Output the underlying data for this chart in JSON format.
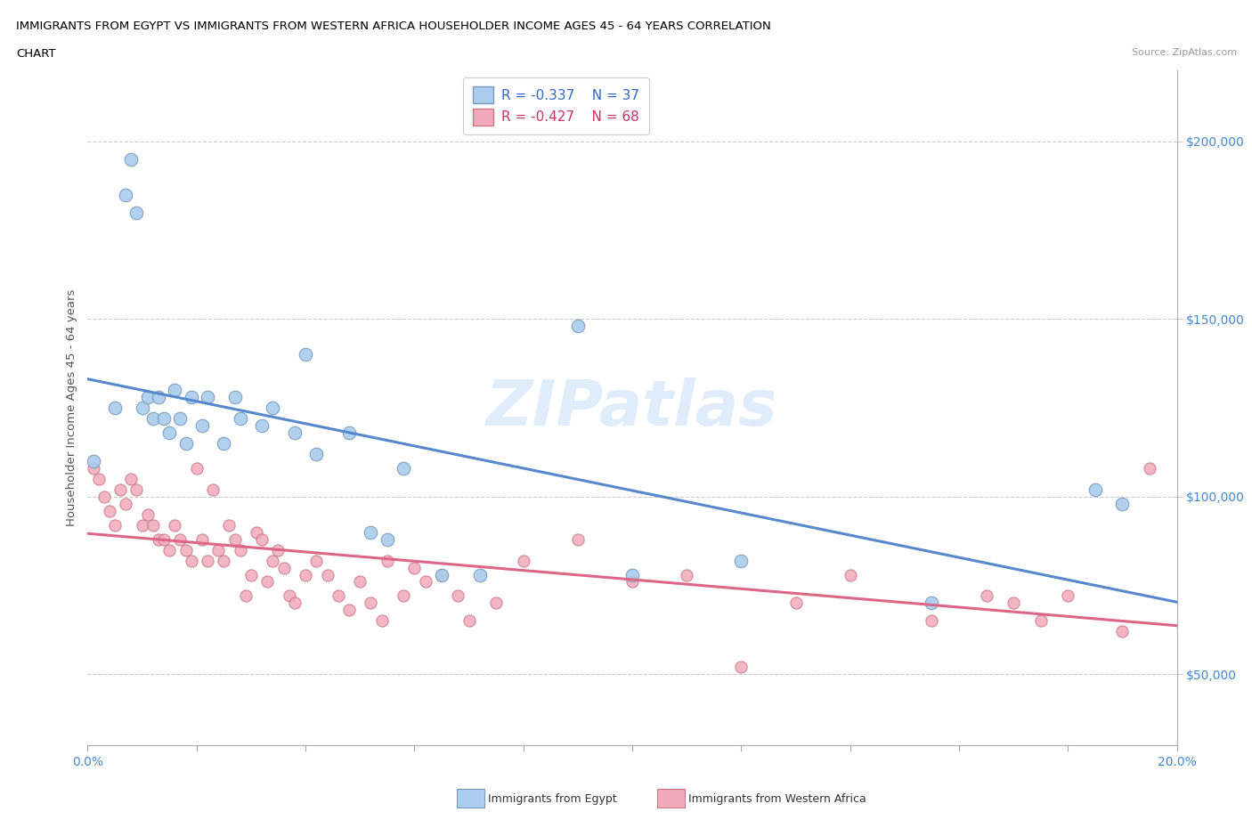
{
  "title_line1": "IMMIGRANTS FROM EGYPT VS IMMIGRANTS FROM WESTERN AFRICA HOUSEHOLDER INCOME AGES 45 - 64 YEARS CORRELATION",
  "title_line2": "CHART",
  "source": "Source: ZipAtlas.com",
  "ylabel": "Householder Income Ages 45 - 64 years",
  "xlim": [
    0.0,
    0.2
  ],
  "ylim": [
    30000,
    220000
  ],
  "yticks": [
    50000,
    100000,
    150000,
    200000
  ],
  "ytick_labels": [
    "$50,000",
    "$100,000",
    "$150,000",
    "$200,000"
  ],
  "xticks": [
    0.0,
    0.02,
    0.04,
    0.06,
    0.08,
    0.1,
    0.12,
    0.14,
    0.16,
    0.18,
    0.2
  ],
  "R_egypt": -0.337,
  "N_egypt": 37,
  "R_western": -0.427,
  "N_western": 68,
  "egypt_color": "#aaccee",
  "egypt_edge": "#7799bb",
  "western_color": "#f0aabb",
  "western_edge": "#cc7788",
  "egypt_line_color": "#5588cc",
  "western_line_color": "#dd6688",
  "egypt_x": [
    0.001,
    0.005,
    0.007,
    0.008,
    0.009,
    0.01,
    0.011,
    0.012,
    0.013,
    0.014,
    0.015,
    0.016,
    0.017,
    0.018,
    0.019,
    0.021,
    0.022,
    0.025,
    0.027,
    0.028,
    0.032,
    0.034,
    0.038,
    0.04,
    0.042,
    0.048,
    0.052,
    0.055,
    0.058,
    0.065,
    0.072,
    0.09,
    0.1,
    0.12,
    0.155,
    0.185,
    0.19
  ],
  "egypt_y": [
    110000,
    125000,
    185000,
    195000,
    180000,
    125000,
    128000,
    122000,
    128000,
    122000,
    118000,
    130000,
    122000,
    115000,
    128000,
    120000,
    128000,
    115000,
    128000,
    122000,
    120000,
    125000,
    118000,
    140000,
    112000,
    118000,
    90000,
    88000,
    108000,
    78000,
    78000,
    148000,
    78000,
    82000,
    70000,
    102000,
    98000
  ],
  "western_x": [
    0.001,
    0.002,
    0.003,
    0.004,
    0.005,
    0.006,
    0.007,
    0.008,
    0.009,
    0.01,
    0.011,
    0.012,
    0.013,
    0.014,
    0.015,
    0.016,
    0.017,
    0.018,
    0.019,
    0.02,
    0.021,
    0.022,
    0.023,
    0.024,
    0.025,
    0.026,
    0.027,
    0.028,
    0.029,
    0.03,
    0.031,
    0.032,
    0.033,
    0.034,
    0.035,
    0.036,
    0.037,
    0.038,
    0.04,
    0.042,
    0.044,
    0.046,
    0.048,
    0.05,
    0.052,
    0.054,
    0.055,
    0.058,
    0.06,
    0.062,
    0.065,
    0.068,
    0.07,
    0.075,
    0.08,
    0.09,
    0.1,
    0.11,
    0.12,
    0.13,
    0.14,
    0.155,
    0.165,
    0.17,
    0.175,
    0.18,
    0.19,
    0.195
  ],
  "western_y": [
    108000,
    105000,
    100000,
    96000,
    92000,
    102000,
    98000,
    105000,
    102000,
    92000,
    95000,
    92000,
    88000,
    88000,
    85000,
    92000,
    88000,
    85000,
    82000,
    108000,
    88000,
    82000,
    102000,
    85000,
    82000,
    92000,
    88000,
    85000,
    72000,
    78000,
    90000,
    88000,
    76000,
    82000,
    85000,
    80000,
    72000,
    70000,
    78000,
    82000,
    78000,
    72000,
    68000,
    76000,
    70000,
    65000,
    82000,
    72000,
    80000,
    76000,
    78000,
    72000,
    65000,
    70000,
    82000,
    88000,
    76000,
    78000,
    52000,
    70000,
    78000,
    65000,
    72000,
    70000,
    65000,
    72000,
    62000,
    108000
  ]
}
